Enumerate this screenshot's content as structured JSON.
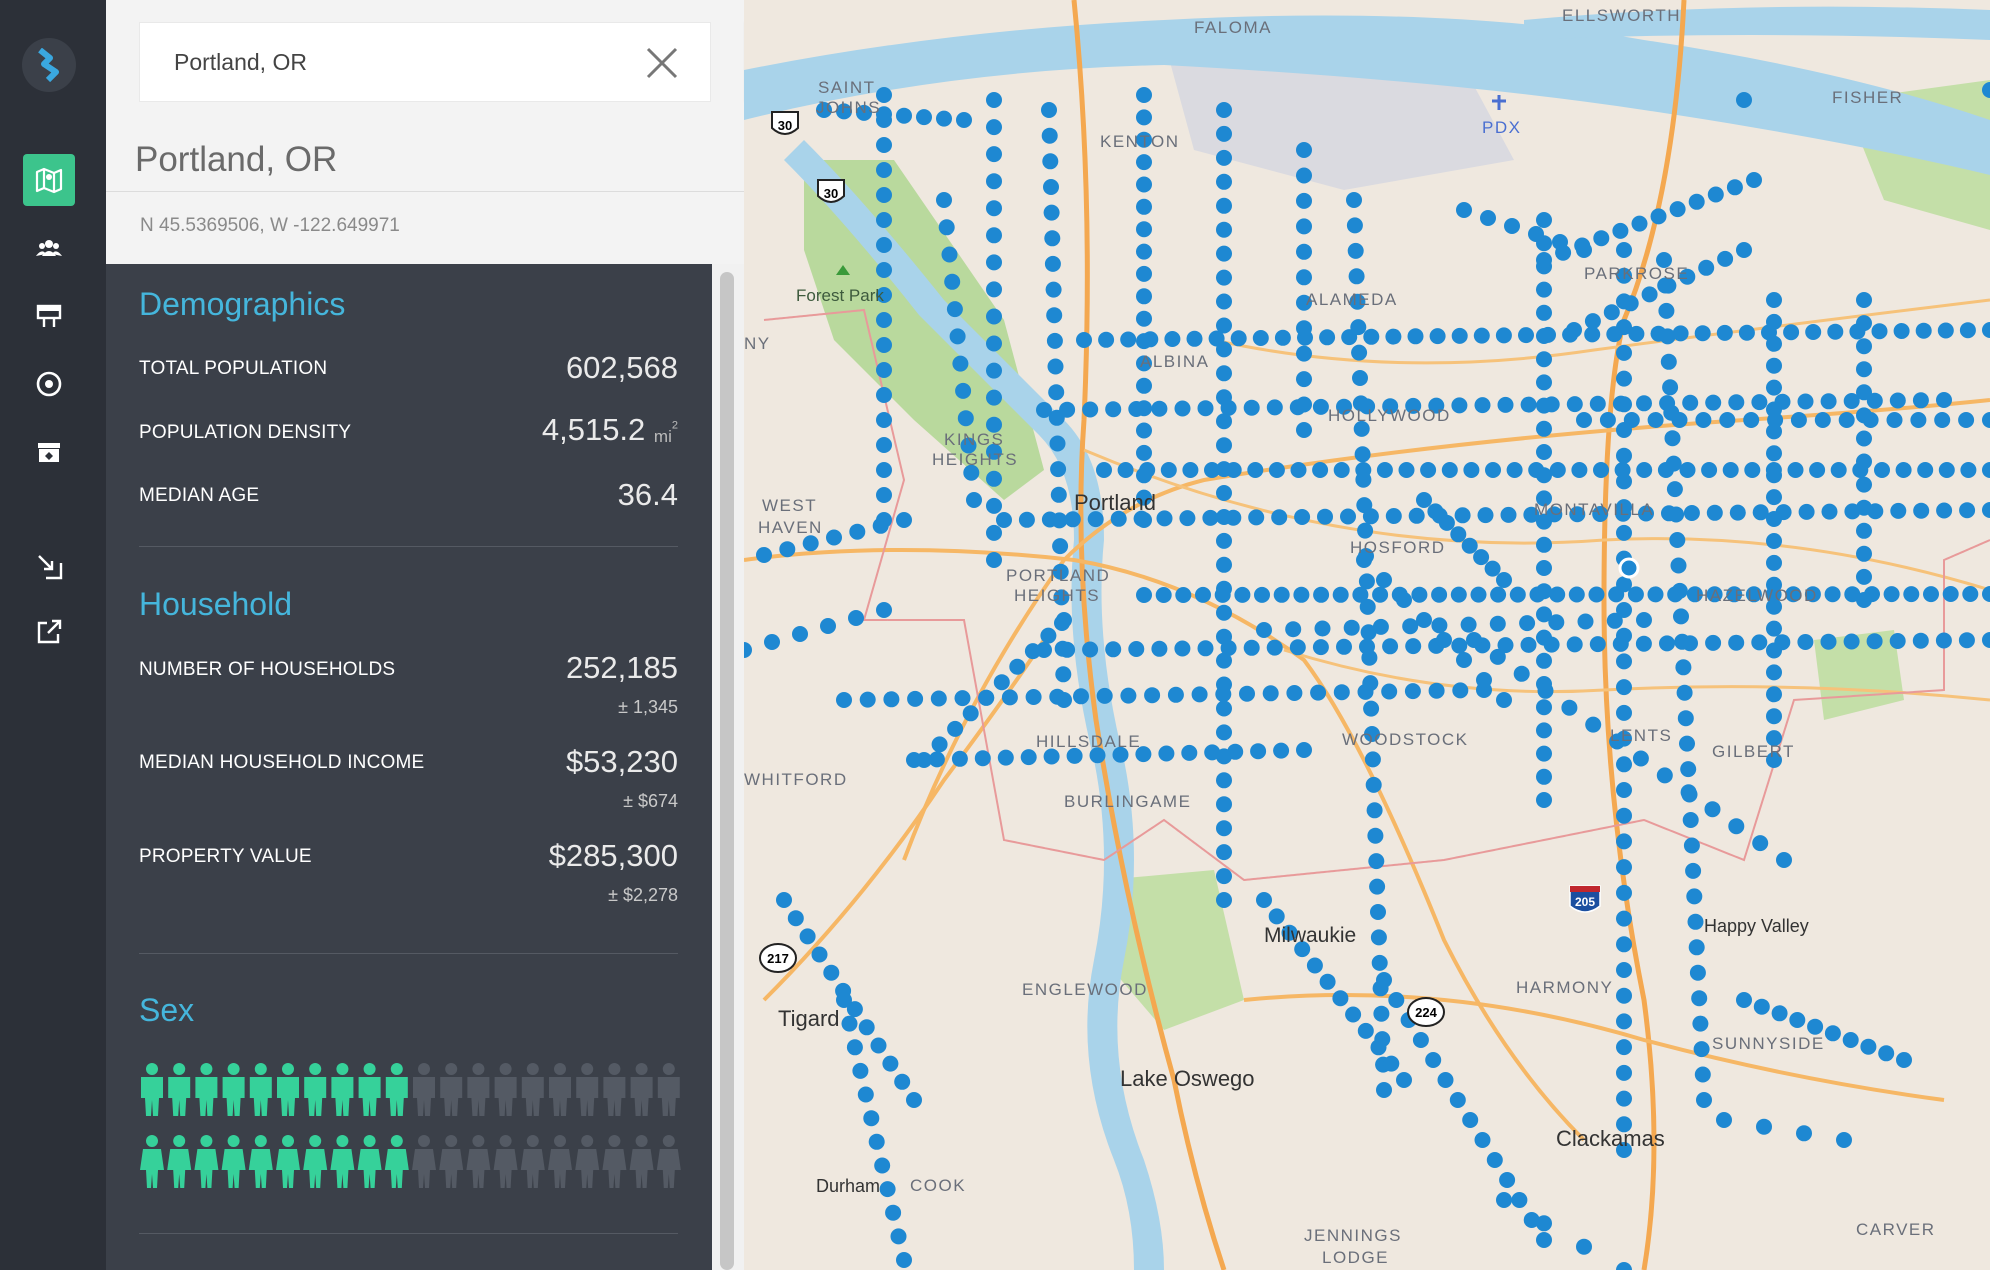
{
  "search": {
    "value": "Portland, OR"
  },
  "place": {
    "title": "Portland, OR",
    "coords": "N 45.5369506, W -122.649971"
  },
  "collapse_icon": "chevron-left",
  "demographics": {
    "title": "Demographics",
    "total_population": {
      "label": "TOTAL POPULATION",
      "value": "602,568"
    },
    "population_density": {
      "label": "POPULATION DENSITY",
      "value": "4,515.2",
      "unit": "mi",
      "unit_sup": "2"
    },
    "median_age": {
      "label": "MEDIAN AGE",
      "value": "36.4"
    }
  },
  "household": {
    "title": "Household",
    "households": {
      "label": "NUMBER OF HOUSEHOLDS",
      "value": "252,185",
      "moe": "± 1,345"
    },
    "income": {
      "label": "MEDIAN HOUSEHOLD INCOME",
      "value": "$53,230",
      "moe": "± $674"
    },
    "property": {
      "label": "PROPERTY VALUE",
      "value": "$285,300",
      "moe": "± $2,278"
    }
  },
  "sex": {
    "title": "Sex",
    "male_fraction": 0.49,
    "female_fraction": 0.51
  },
  "colors": {
    "accent": "#3cc48c",
    "heading": "#45b6dc",
    "marker": "#1e88d2",
    "people_fill": "#36d19a"
  },
  "rail_icons": [
    "logo-icon",
    "map-icon",
    "people-icon",
    "billboard-icon",
    "target-icon",
    "archive-icon",
    "import-icon",
    "external-link-icon"
  ],
  "map_labels": {
    "faloma": "FALOMA",
    "ellsworth": "ELLSWORTH",
    "fisher": "FISHER",
    "saint_johns_1": "SAINT",
    "saint_johns_2": "JOHNS",
    "pdx": "PDX",
    "kenton": "KENTON",
    "forest_park": "Forest Park",
    "parkrose": "PARKROSE",
    "alameda": "ALAMEDA",
    "albina": "ALBINA",
    "kings_heights_1": "KINGS",
    "kings_heights_2": "HEIGHTS",
    "west_haven_1": "WEST",
    "west_haven_2": "HAVEN",
    "portland": "Portland",
    "portland_heights_1": "PORTLAND",
    "portland_heights_2": "HEIGHTS",
    "montavilla": "MONTAVILLA",
    "hosford": "HOSFORD",
    "hollywood": "HOLLYWOOD",
    "hazelwood": "HAZELWOOD",
    "hillsdale": "HILLSDALE",
    "burlingame": "BURLINGAME",
    "woodstock": "WOODSTOCK",
    "lents": "LENTS",
    "gilbert": "GILBERT",
    "milwaukie": "Milwaukie",
    "happy_valley": "Happy Valley",
    "englewood": "ENGLEWOOD",
    "harmony": "HARMONY",
    "tigard": "Tigard",
    "lake_oswego": "Lake Oswego",
    "sunnyside": "SUNNYSIDE",
    "clackamas": "Clackamas",
    "durham": "Durham",
    "cook": "COOK",
    "jennings_1": "JENNINGS",
    "jennings_2": "LODGE",
    "carver": "CARVER",
    "whitford": "WHITFORD",
    "ny": "NY"
  },
  "shields": {
    "r30a": "30",
    "r30b": "30",
    "r217": "217",
    "r224": "224",
    "i205": "205"
  }
}
